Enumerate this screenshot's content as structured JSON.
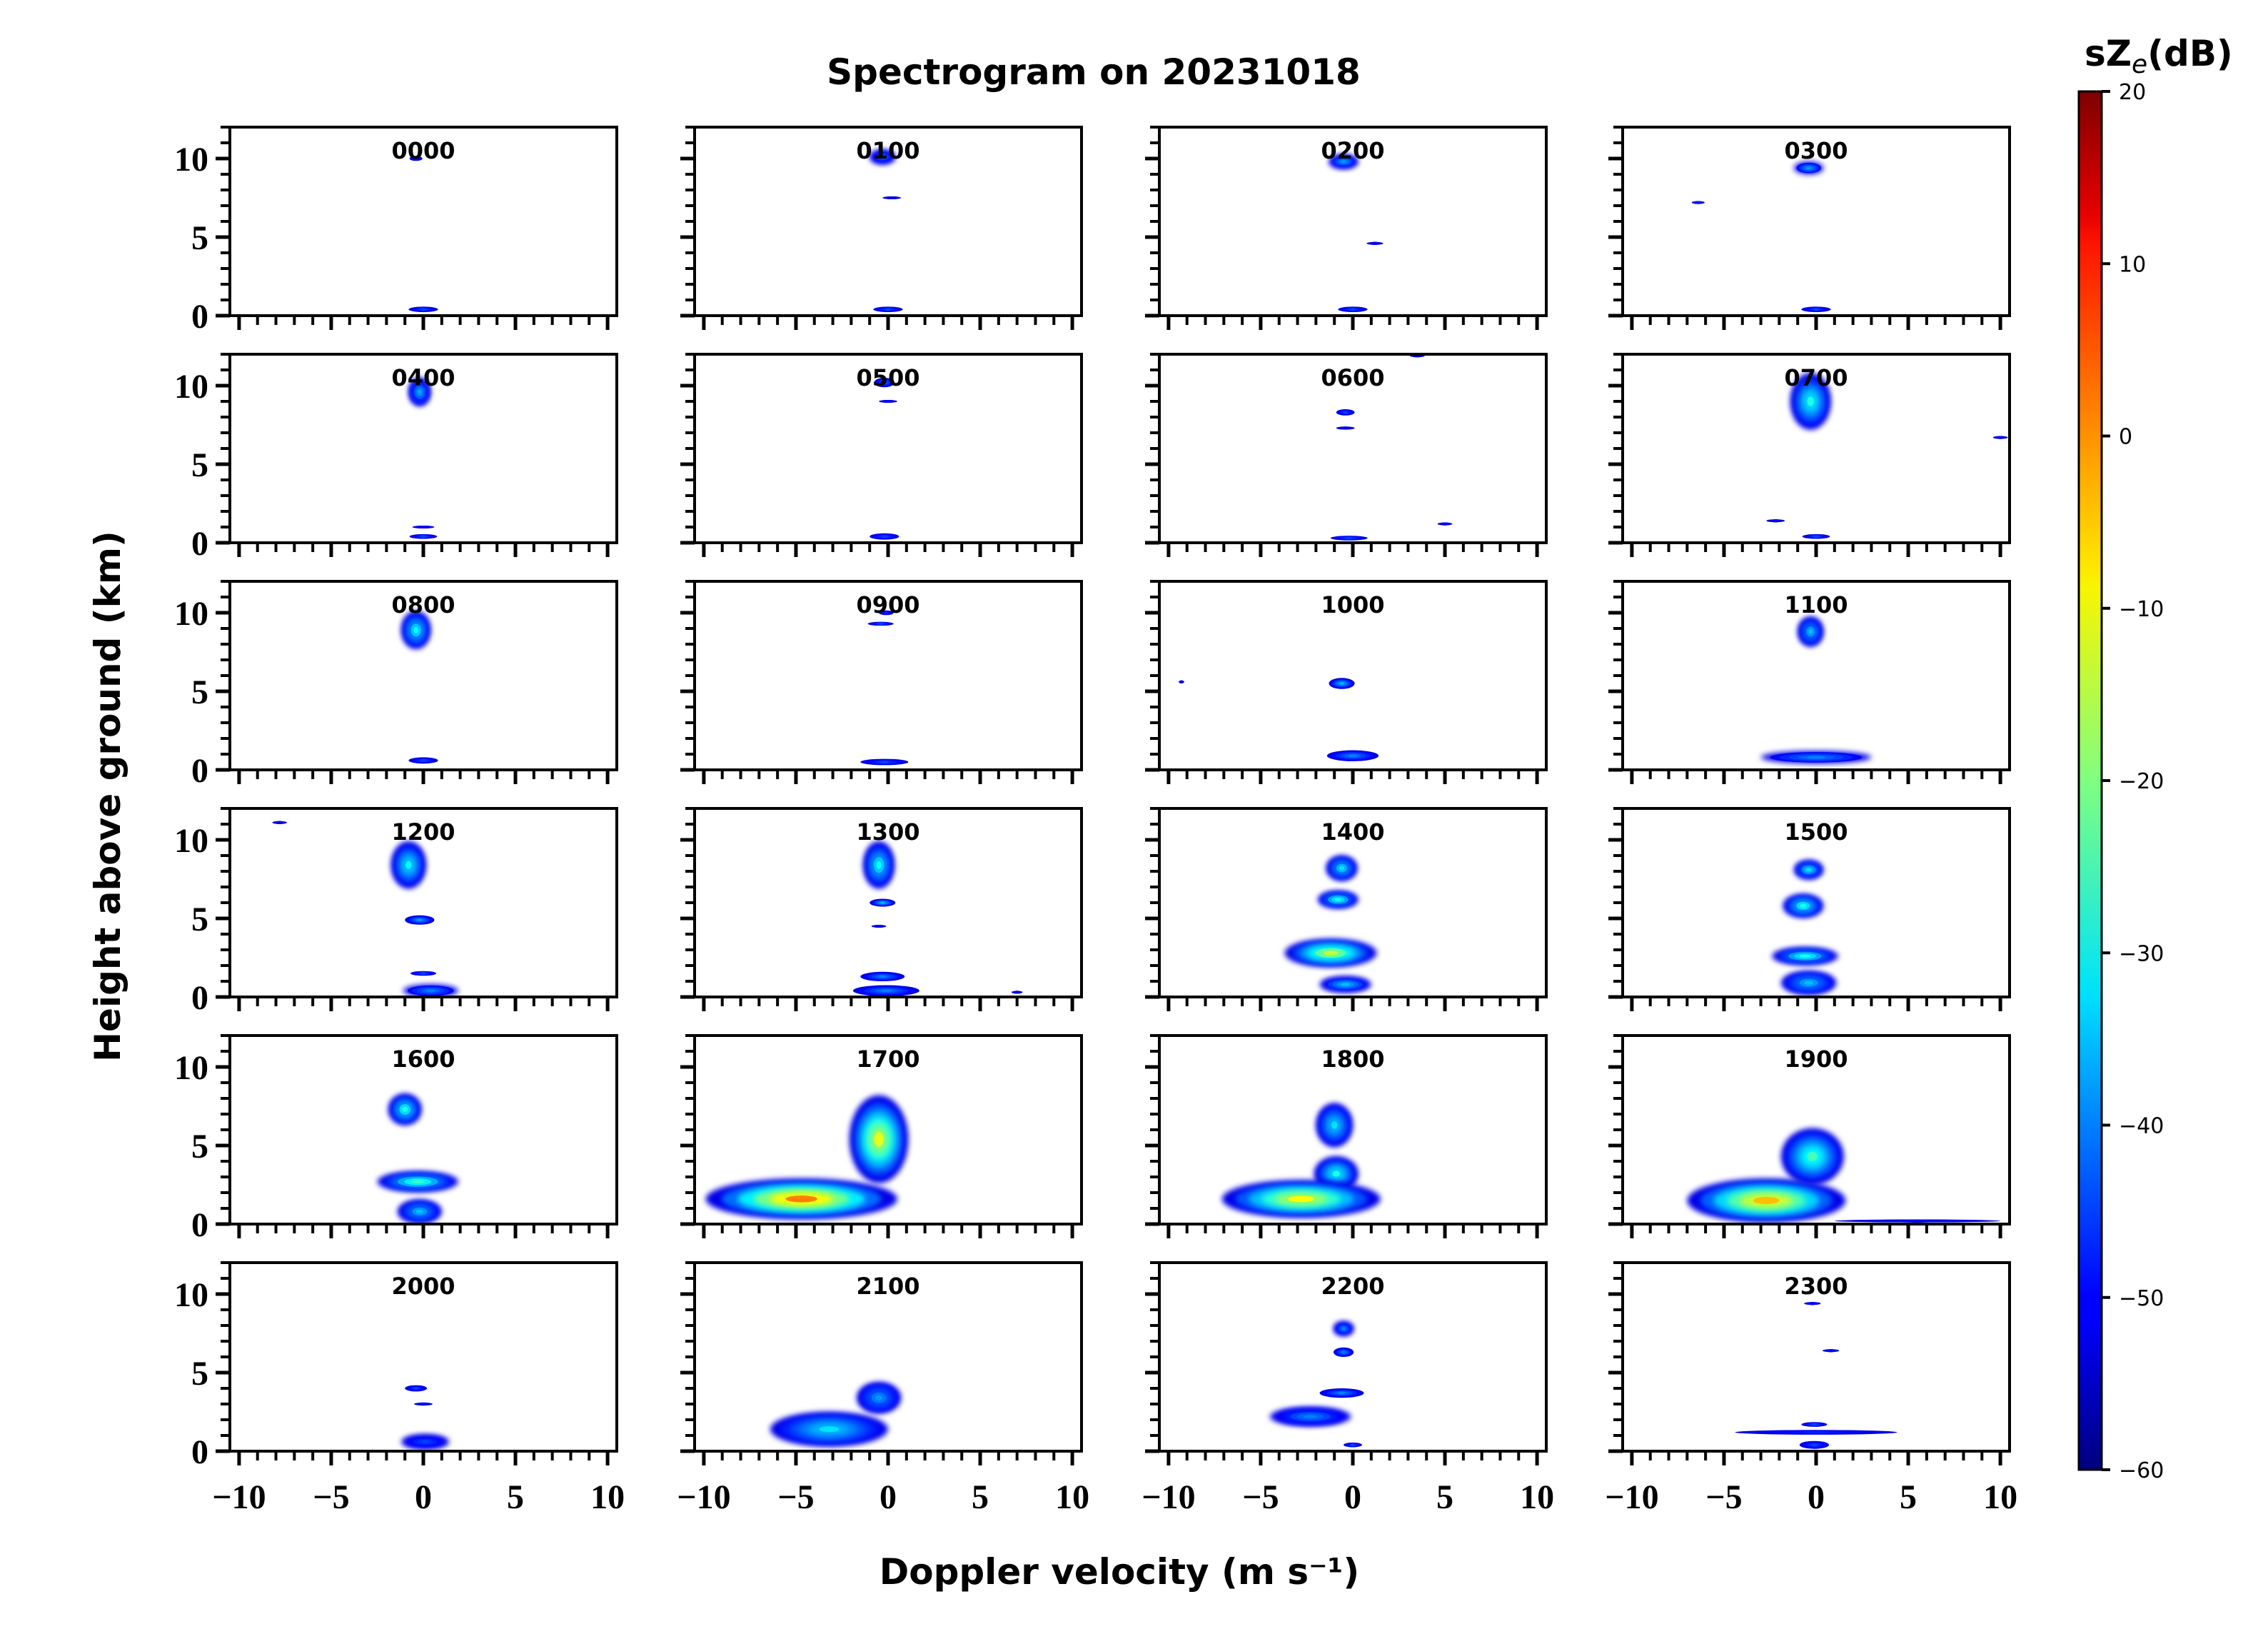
{
  "chart_data": {
    "type": "heatmap",
    "title": "Spectrogram on 20231018",
    "xlabel": "Doppler velocity (m s⁻¹)",
    "ylabel": "Height above ground (km)",
    "xlim": [
      -10.5,
      10.5
    ],
    "ylim": [
      0,
      12
    ],
    "xticks": [
      -10,
      -5,
      0,
      5,
      10
    ],
    "xticklabels": [
      "−10",
      "−5",
      "0",
      "5",
      "10"
    ],
    "yticks": [
      0,
      5,
      10
    ],
    "yticklabels": [
      "0",
      "5",
      "10"
    ],
    "colorbar": {
      "label": "sZ",
      "label_sub": "e",
      "label_unit": "(dB)",
      "min": -60,
      "max": 20,
      "ticks": [
        20,
        10,
        0,
        -10,
        -20,
        -30,
        -40,
        -50,
        -60
      ],
      "ticklabels": [
        "20",
        "10",
        "0",
        "−10",
        "−20",
        "−30",
        "−40",
        "−50",
        "−60"
      ],
      "colormap": "jet"
    },
    "panels": [
      {
        "label": "0000",
        "echoes": [
          [
            -0.4,
            10.0,
            0.7,
            0.3,
            -48
          ],
          [
            0.0,
            0.4,
            1.6,
            0.35,
            -45
          ]
        ]
      },
      {
        "label": "0100",
        "echoes": [
          [
            -0.3,
            10.1,
            1.4,
            0.9,
            -42
          ],
          [
            0.2,
            7.5,
            1.0,
            0.15,
            -52
          ],
          [
            0.0,
            0.4,
            1.6,
            0.35,
            -45
          ]
        ]
      },
      {
        "label": "0200",
        "echoes": [
          [
            -0.5,
            9.8,
            1.6,
            0.9,
            -38
          ],
          [
            1.2,
            4.6,
            0.9,
            0.12,
            -52
          ],
          [
            0.0,
            0.4,
            1.6,
            0.35,
            -45
          ]
        ]
      },
      {
        "label": "0300",
        "echoes": [
          [
            -0.4,
            9.4,
            1.6,
            0.8,
            -38
          ],
          [
            -6.4,
            7.2,
            0.7,
            0.12,
            -48
          ],
          [
            0.0,
            0.4,
            1.6,
            0.35,
            -45
          ]
        ]
      },
      {
        "label": "0400",
        "echoes": [
          [
            -0.2,
            9.6,
            1.2,
            1.8,
            -37
          ],
          [
            0.0,
            1.0,
            1.2,
            0.12,
            -50
          ],
          [
            0.0,
            0.4,
            1.5,
            0.3,
            -45
          ]
        ]
      },
      {
        "label": "0500",
        "echoes": [
          [
            -0.2,
            10.2,
            1.1,
            0.6,
            -42
          ],
          [
            0.0,
            9.0,
            1.0,
            0.15,
            -50
          ],
          [
            -0.2,
            0.4,
            1.6,
            0.4,
            -45
          ]
        ]
      },
      {
        "label": "0600",
        "echoes": [
          [
            -0.4,
            8.3,
            1.0,
            0.4,
            -45
          ],
          [
            -0.4,
            7.3,
            1.0,
            0.2,
            -50
          ],
          [
            3.5,
            11.9,
            0.8,
            0.15,
            -50
          ],
          [
            5.0,
            1.2,
            0.8,
            0.12,
            -50
          ],
          [
            -0.2,
            0.3,
            2.0,
            0.3,
            -45
          ]
        ]
      },
      {
        "label": "0700",
        "echoes": [
          [
            -0.3,
            9.0,
            2.2,
            3.6,
            -28
          ],
          [
            -2.2,
            1.4,
            1.0,
            0.12,
            -50
          ],
          [
            10.0,
            6.7,
            0.8,
            0.12,
            -52
          ],
          [
            0.0,
            0.4,
            1.5,
            0.3,
            -45
          ]
        ]
      },
      {
        "label": "0800",
        "echoes": [
          [
            -0.4,
            8.9,
            1.6,
            2.4,
            -30
          ],
          [
            0.0,
            0.6,
            1.6,
            0.4,
            -45
          ]
        ]
      },
      {
        "label": "0900",
        "echoes": [
          [
            -0.4,
            9.3,
            1.4,
            0.25,
            -45
          ],
          [
            -0.1,
            10.0,
            0.8,
            0.3,
            -48
          ],
          [
            -0.2,
            0.5,
            2.6,
            0.4,
            -45
          ]
        ]
      },
      {
        "label": "1000",
        "echoes": [
          [
            -0.6,
            5.5,
            1.4,
            0.7,
            -36
          ],
          [
            0.0,
            0.9,
            2.8,
            0.7,
            -40
          ],
          [
            -9.3,
            5.6,
            0.3,
            0.12,
            -52
          ]
        ]
      },
      {
        "label": "1100",
        "echoes": [
          [
            -0.3,
            8.8,
            1.4,
            1.9,
            -35
          ],
          [
            0.0,
            0.8,
            6.0,
            0.8,
            -40
          ]
        ]
      },
      {
        "label": "1200",
        "echoes": [
          [
            -0.8,
            8.4,
            1.9,
            3.0,
            -30
          ],
          [
            -0.2,
            4.9,
            1.6,
            0.6,
            -38
          ],
          [
            0.0,
            1.5,
            1.4,
            0.3,
            -45
          ],
          [
            0.4,
            0.4,
            3.0,
            0.8,
            -40
          ],
          [
            -7.8,
            11.1,
            0.8,
            0.12,
            -52
          ]
        ]
      },
      {
        "label": "1300",
        "echoes": [
          [
            -0.5,
            8.4,
            1.7,
            3.0,
            -30
          ],
          [
            -0.3,
            6.0,
            1.4,
            0.5,
            -36
          ],
          [
            -0.5,
            4.5,
            0.8,
            0.15,
            -50
          ],
          [
            -0.3,
            1.3,
            2.4,
            0.6,
            -40
          ],
          [
            -0.1,
            0.4,
            3.6,
            0.7,
            -40
          ],
          [
            7.0,
            0.3,
            0.6,
            0.12,
            -52
          ]
        ]
      },
      {
        "label": "1400",
        "echoes": [
          [
            -0.6,
            8.2,
            1.7,
            1.6,
            -32
          ],
          [
            -0.8,
            6.2,
            2.2,
            1.1,
            -28
          ],
          [
            -1.2,
            2.8,
            5.0,
            1.8,
            -15
          ],
          [
            -0.4,
            0.8,
            2.8,
            1.0,
            -35
          ]
        ]
      },
      {
        "label": "1500",
        "echoes": [
          [
            -0.4,
            8.1,
            1.6,
            1.2,
            -32
          ],
          [
            -0.7,
            5.8,
            2.2,
            1.5,
            -28
          ],
          [
            -0.6,
            2.6,
            3.6,
            1.1,
            -28
          ],
          [
            -0.4,
            0.9,
            3.0,
            1.5,
            -35
          ]
        ]
      },
      {
        "label": "1600",
        "echoes": [
          [
            -1.0,
            7.3,
            1.8,
            2.0,
            -28
          ],
          [
            -0.3,
            2.7,
            4.4,
            1.3,
            -26
          ],
          [
            -0.2,
            0.8,
            2.4,
            1.5,
            -35
          ]
        ]
      },
      {
        "label": "1700",
        "echoes": [
          [
            -0.5,
            5.4,
            3.2,
            5.6,
            -12
          ],
          [
            -4.7,
            1.6,
            10.4,
            2.6,
            0
          ]
        ]
      },
      {
        "label": "1800",
        "echoes": [
          [
            -1.0,
            6.3,
            2.0,
            2.8,
            -32
          ],
          [
            -0.9,
            3.2,
            2.4,
            2.2,
            -28
          ],
          [
            -2.8,
            1.6,
            8.6,
            2.4,
            -10
          ]
        ]
      },
      {
        "label": "1900",
        "echoes": [
          [
            -0.2,
            4.3,
            3.4,
            3.6,
            -25
          ],
          [
            -2.7,
            1.5,
            8.6,
            2.8,
            -5
          ],
          [
            5.5,
            0.2,
            9.0,
            0.1,
            -50
          ]
        ]
      },
      {
        "label": "2000",
        "echoes": [
          [
            -0.4,
            4.0,
            1.2,
            0.4,
            -45
          ],
          [
            0.0,
            3.0,
            1.0,
            0.2,
            -50
          ],
          [
            0.1,
            0.6,
            2.6,
            0.9,
            -45
          ]
        ]
      },
      {
        "label": "2100",
        "echoes": [
          [
            -0.5,
            3.4,
            2.4,
            2.0,
            -38
          ],
          [
            -3.2,
            1.4,
            6.4,
            2.2,
            -32
          ]
        ]
      },
      {
        "label": "2200",
        "echoes": [
          [
            -0.5,
            7.8,
            1.1,
            0.9,
            -40
          ],
          [
            -0.5,
            6.3,
            1.1,
            0.6,
            -40
          ],
          [
            -0.6,
            3.7,
            2.4,
            0.6,
            -40
          ],
          [
            -2.3,
            2.2,
            4.4,
            1.2,
            -40
          ],
          [
            0.0,
            0.4,
            1.0,
            0.3,
            -45
          ]
        ]
      },
      {
        "label": "2300",
        "echoes": [
          [
            -0.2,
            9.4,
            0.9,
            0.15,
            -50
          ],
          [
            0.8,
            6.4,
            0.9,
            0.15,
            -50
          ],
          [
            -0.1,
            1.7,
            1.4,
            0.3,
            -45
          ],
          [
            0.0,
            1.2,
            8.8,
            0.3,
            -48
          ],
          [
            -0.1,
            0.4,
            1.6,
            0.5,
            -45
          ]
        ]
      }
    ]
  }
}
